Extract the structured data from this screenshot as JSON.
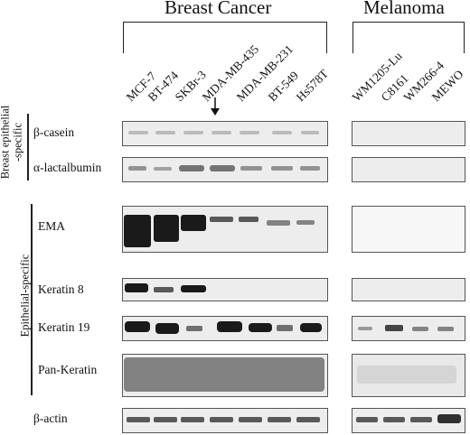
{
  "groups": {
    "breast": "Breast Cancer",
    "melanoma": "Melanoma"
  },
  "breast_lanes": [
    "MCF-7",
    "BT-474",
    "SKBr-3",
    "MDA-MB-435",
    "MDA-MB-231",
    "BT-549",
    "Hs578T"
  ],
  "melanoma_lanes": [
    "WM1205-Lu",
    "C8161",
    "WM266-4",
    "MEWO"
  ],
  "side_labels": {
    "breast_epithelial_line1": "Breast epithelial",
    "breast_epithelial_line2": "-specific",
    "epithelial": "Epithelial-specific"
  },
  "rows": {
    "beta_casein": "β-casein",
    "alpha_lactalbumin": "α-lactalbumin",
    "ema": "EMA",
    "keratin8": "Keratin 8",
    "keratin19": "Keratin 19",
    "pan_keratin": "Pan-Keratin",
    "beta_actin": "β-actin"
  }
}
